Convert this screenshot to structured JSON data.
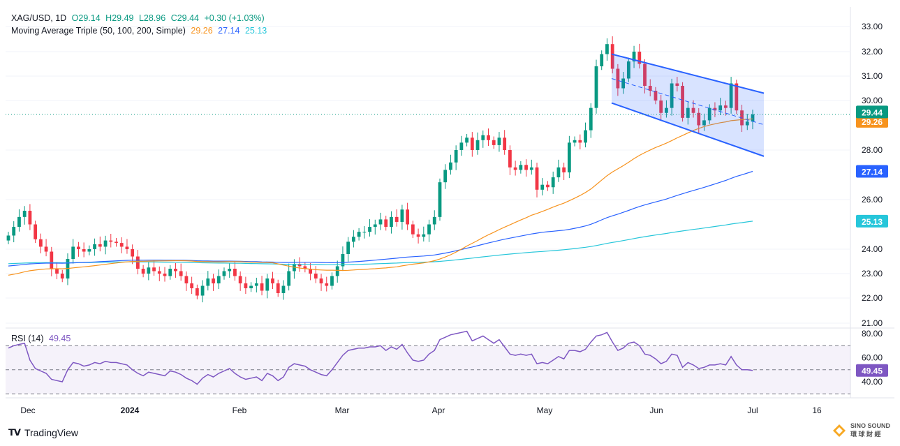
{
  "header": {
    "symbol": "XAG/USD, 1D",
    "open": "O29.14",
    "high": "H29.49",
    "low": "L28.96",
    "close": "C29.44",
    "change": "+0.30 (+1.03%)",
    "ma_title": "Moving Average Triple (50, 100, 200, Simple)",
    "ma50": "29.26",
    "ma100": "27.14",
    "ma200": "25.13"
  },
  "rsi_header": {
    "label": "RSI (14)",
    "value": "49.45"
  },
  "colors": {
    "up": "#089981",
    "down": "#f23645",
    "ma50": "#f7931e",
    "ma100": "#2962ff",
    "ma200": "#26c6da",
    "channel": "#2962ff",
    "rsi": "#7e57c2"
  },
  "chart_data": [
    {
      "type": "candlestick",
      "title": "XAG/USD, 1D",
      "ylim": [
        21,
        33
      ],
      "y_ticks": [
        "33.00",
        "32.00",
        "31.00",
        "30.00",
        "28.00",
        "26.00",
        "24.00",
        "23.00",
        "22.00",
        "21.00"
      ],
      "x_ticks": [
        "Dec",
        "2024",
        "Feb",
        "Mar",
        "Apr",
        "May",
        "Jun",
        "Jul",
        "16"
      ],
      "last_price_label": "29.44",
      "ma_labels": {
        "ma50": "29.26",
        "ma100": "27.14",
        "ma200": "25.13"
      },
      "closes": [
        24.55,
        24.9,
        25.3,
        25.55,
        25.0,
        24.4,
        24.1,
        23.9,
        23.2,
        23.0,
        22.8,
        23.6,
        24.1,
        24.0,
        23.9,
        24.0,
        24.2,
        24.1,
        24.35,
        24.3,
        24.25,
        24.1,
        24.0,
        23.7,
        23.2,
        23.0,
        23.25,
        23.1,
        23.0,
        22.9,
        23.2,
        23.1,
        22.9,
        22.6,
        22.4,
        22.1,
        22.5,
        22.8,
        22.6,
        22.9,
        23.1,
        23.2,
        22.9,
        22.6,
        22.4,
        22.5,
        22.6,
        22.3,
        22.8,
        22.6,
        22.2,
        22.5,
        23.1,
        23.4,
        23.3,
        23.2,
        23.0,
        22.8,
        22.6,
        22.5,
        22.9,
        23.3,
        23.8,
        24.3,
        24.5,
        24.7,
        24.7,
        24.9,
        25.0,
        25.2,
        24.9,
        25.3,
        25.1,
        25.6,
        25.0,
        24.6,
        24.5,
        24.6,
        25.0,
        25.3,
        26.7,
        27.2,
        27.5,
        28.0,
        28.3,
        28.5,
        28.0,
        28.4,
        28.6,
        28.4,
        28.2,
        28.5,
        28.0,
        27.3,
        27.2,
        27.4,
        27.2,
        27.3,
        26.4,
        26.6,
        26.5,
        26.9,
        27.3,
        27.1,
        28.3,
        28.4,
        28.3,
        28.8,
        29.7,
        31.4,
        31.9,
        32.3,
        31.3,
        30.5,
        30.9,
        31.6,
        32.0,
        31.5,
        30.6,
        30.4,
        30.0,
        29.5,
        29.7,
        30.7,
        30.6,
        29.3,
        29.7,
        29.5,
        29.0,
        29.2,
        29.7,
        29.6,
        29.8,
        29.7,
        30.7,
        29.6,
        29.0,
        29.15,
        29.44
      ],
      "moving_averages": {
        "ma50_last": 29.26,
        "ma100_last": 27.14,
        "ma200_last": 25.13
      },
      "channel": {
        "upper": [
          [
            31.9,
            30.3
          ]
        ],
        "lower": [
          [
            29.9,
            27.75
          ]
        ]
      }
    },
    {
      "type": "line",
      "title": "RSI (14)",
      "ylim": [
        30,
        80
      ],
      "y_ticks": [
        "80.00",
        "60.00",
        "40.00"
      ],
      "last_value_label": "49.45",
      "levels": [
        70,
        50,
        30
      ],
      "values": [
        68,
        70,
        71,
        72,
        58,
        51,
        49,
        47,
        42,
        41,
        40,
        50,
        56,
        55,
        53,
        54,
        56,
        55,
        57,
        56,
        56,
        55,
        54,
        50,
        47,
        45,
        48,
        47,
        46,
        45,
        49,
        48,
        46,
        43,
        41,
        38,
        43,
        46,
        44,
        47,
        49,
        51,
        47,
        44,
        42,
        43,
        44,
        41,
        47,
        45,
        41,
        44,
        52,
        55,
        54,
        53,
        50,
        48,
        46,
        45,
        50,
        56,
        62,
        66,
        67,
        68,
        68,
        69,
        69,
        70,
        66,
        69,
        67,
        71,
        64,
        58,
        57,
        58,
        63,
        66,
        75,
        77,
        79,
        80,
        81,
        82,
        74,
        76,
        78,
        75,
        72,
        75,
        69,
        63,
        62,
        63,
        62,
        63,
        55,
        56,
        55,
        58,
        61,
        59,
        66,
        66,
        65,
        67,
        73,
        78,
        79,
        81,
        73,
        66,
        68,
        72,
        73,
        70,
        63,
        62,
        59,
        55,
        57,
        63,
        62,
        52,
        56,
        54,
        51,
        52,
        54,
        54,
        55,
        54,
        61,
        54,
        50,
        50,
        49.45
      ]
    }
  ],
  "footer": {
    "brand": "TradingView",
    "sino_top": "SINO SOUND",
    "sino_bottom": "環 球 財 經"
  }
}
